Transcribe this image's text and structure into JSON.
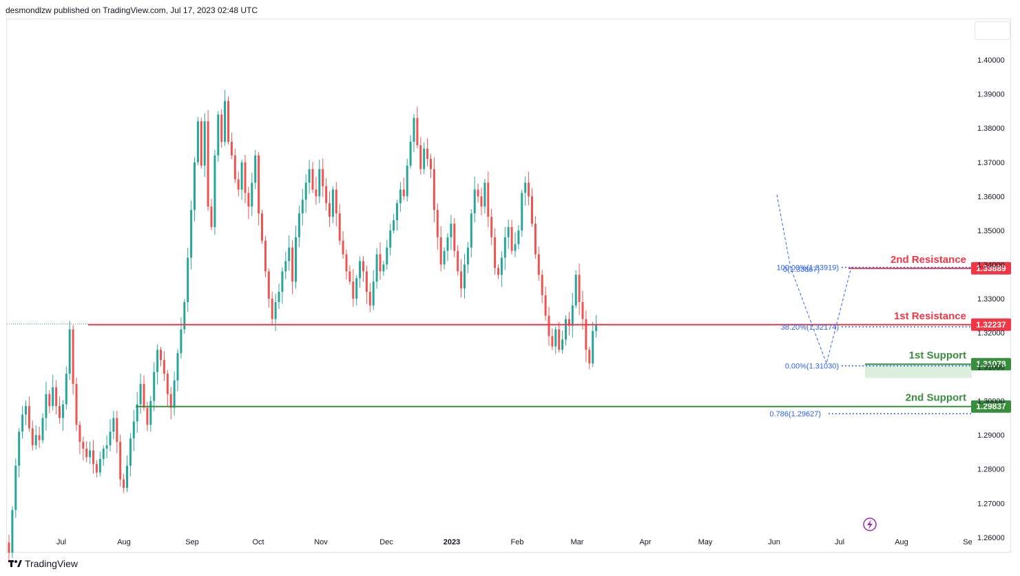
{
  "header": {
    "publisher": "desmondlzw published on TradingView.com, Jul 17, 2023 02:48 UTC"
  },
  "footer": {
    "brand": "TradingView"
  },
  "colors": {
    "up": "#26a69a",
    "down": "#ef5350",
    "resistance": "#f23645",
    "support": "#388e3c",
    "fib": "#2962ff",
    "axis_text": "#131722"
  },
  "chart_data": {
    "type": "candlestick",
    "title": "",
    "ylim": [
      1.2525,
      1.4085
    ],
    "y_ticks": [
      "1.40000",
      "1.39000",
      "1.38000",
      "1.37000",
      "1.36000",
      "1.35000",
      "1.34000",
      "1.33000",
      "1.32000",
      "1.31000",
      "1.30000",
      "1.29000",
      "1.28000",
      "1.27000",
      "1.26000"
    ],
    "x_ticks": [
      "Jul",
      "Aug",
      "Sep",
      "Oct",
      "Nov",
      "Dec",
      "2023",
      "Feb",
      "Mar",
      "Apr",
      "May",
      "Jun",
      "Jul",
      "Aug",
      "Se"
    ],
    "levels": [
      {
        "name": "2nd Resistance",
        "value": 1.33889,
        "badge": "1.33889",
        "kind": "resistance"
      },
      {
        "name": "1st Resistance",
        "value": 1.32237,
        "badge": "1.32237",
        "kind": "resistance"
      },
      {
        "name": "1st Support",
        "value": 1.31078,
        "badge": "1.31078",
        "kind": "support"
      },
      {
        "name": "2nd Support",
        "value": 1.29837,
        "badge": "1.29837",
        "kind": "support"
      }
    ],
    "fibonacci": [
      {
        "text": "100.00%(1.33919)",
        "value": 1.33919
      },
      {
        "text": "38.20%(1.32174)",
        "value": 1.32174
      },
      {
        "text": "0.00%(1.31030)",
        "value": 1.3103
      },
      {
        "text": "0.786(1.29627)",
        "value": 1.29627
      },
      {
        "text": "0(1.33867)",
        "value": 1.33867
      }
    ],
    "closes": [
      1.2555,
      1.268,
      1.281,
      1.291,
      1.296,
      1.2985,
      1.292,
      1.287,
      1.29,
      1.2885,
      1.295,
      1.302,
      1.2985,
      1.304,
      1.2985,
      1.295,
      1.299,
      1.308,
      1.321,
      1.305,
      1.293,
      1.288,
      1.286,
      1.2835,
      1.2855,
      1.2815,
      1.279,
      1.283,
      1.286,
      1.287,
      1.291,
      1.295,
      1.288,
      1.277,
      1.2745,
      1.281,
      1.289,
      1.294,
      1.299,
      1.305,
      1.298,
      1.293,
      1.3,
      1.3085,
      1.315,
      1.312,
      1.308,
      1.302,
      1.298,
      1.306,
      1.314,
      1.321,
      1.329,
      1.342,
      1.356,
      1.37,
      1.382,
      1.369,
      1.382,
      1.357,
      1.351,
      1.372,
      1.384,
      1.376,
      1.388,
      1.376,
      1.372,
      1.365,
      1.362,
      1.37,
      1.361,
      1.357,
      1.364,
      1.372,
      1.355,
      1.347,
      1.338,
      1.33,
      1.324,
      1.329,
      1.332,
      1.338,
      1.341,
      1.345,
      1.335,
      1.348,
      1.355,
      1.359,
      1.364,
      1.368,
      1.362,
      1.36,
      1.368,
      1.363,
      1.358,
      1.354,
      1.362,
      1.355,
      1.347,
      1.343,
      1.338,
      1.335,
      1.33,
      1.336,
      1.341,
      1.338,
      1.332,
      1.328,
      1.335,
      1.343,
      1.338,
      1.34,
      1.345,
      1.35,
      1.353,
      1.358,
      1.362,
      1.36,
      1.369,
      1.376,
      1.383,
      1.375,
      1.368,
      1.374,
      1.371,
      1.368,
      1.356,
      1.348,
      1.34,
      1.344,
      1.348,
      1.352,
      1.344,
      1.338,
      1.333,
      1.34,
      1.345,
      1.355,
      1.362,
      1.36,
      1.357,
      1.364,
      1.354,
      1.348,
      1.339,
      1.337,
      1.342,
      1.348,
      1.351,
      1.344,
      1.346,
      1.35,
      1.361,
      1.364,
      1.36,
      1.352,
      1.343,
      1.337,
      1.331,
      1.325,
      1.319,
      1.316,
      1.321,
      1.315,
      1.318,
      1.324,
      1.322,
      1.328,
      1.337,
      1.329,
      1.324,
      1.315,
      1.311,
      1.3205,
      1.3225
    ]
  }
}
